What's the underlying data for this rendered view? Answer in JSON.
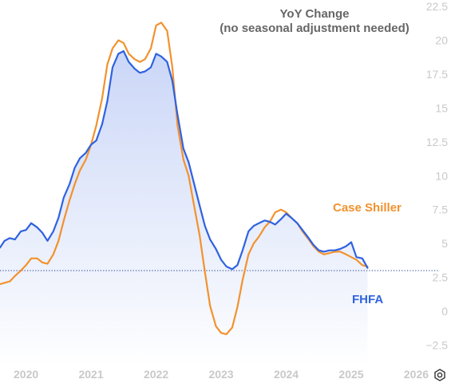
{
  "chart_data": {
    "type": "line",
    "title_lines": [
      "YoY Change",
      "(no seasonal adjustment needed)"
    ],
    "xlabel": "",
    "ylabel": "",
    "xlim": [
      2019.6,
      2026.35
    ],
    "ylim": [
      -4.0,
      22.5
    ],
    "yticks": [
      22.5,
      20,
      17.5,
      15,
      12.5,
      10,
      7.5,
      5,
      2.5,
      0,
      -2.5
    ],
    "ytick_labels": [
      "22.5",
      "20",
      "17.5",
      "15",
      "12.5",
      "10",
      "7.5",
      "5",
      "2.5",
      "0",
      "−2.5"
    ],
    "xticks": [
      2020,
      2021,
      2022,
      2023,
      2024,
      2025,
      2026
    ],
    "xtick_labels": [
      "2020",
      "2021",
      "2022",
      "2023",
      "2024",
      "2025",
      "2026"
    ],
    "reference_line": 3.0,
    "grid": false,
    "series": [
      {
        "name": "FHFA",
        "color": "#2f62e0",
        "area": true,
        "x": [
          2019.6,
          2019.67,
          2019.75,
          2019.83,
          2019.92,
          2020.0,
          2020.08,
          2020.17,
          2020.25,
          2020.33,
          2020.42,
          2020.5,
          2020.58,
          2020.67,
          2020.75,
          2020.83,
          2020.92,
          2021.0,
          2021.08,
          2021.17,
          2021.25,
          2021.33,
          2021.42,
          2021.5,
          2021.58,
          2021.67,
          2021.75,
          2021.83,
          2021.92,
          2022.0,
          2022.08,
          2022.17,
          2022.25,
          2022.33,
          2022.42,
          2022.5,
          2022.58,
          2022.67,
          2022.75,
          2022.83,
          2022.92,
          2023.0,
          2023.08,
          2023.17,
          2023.25,
          2023.33,
          2023.42,
          2023.5,
          2023.58,
          2023.67,
          2023.75,
          2023.83,
          2023.92,
          2024.0,
          2024.08,
          2024.17,
          2024.25,
          2024.33,
          2024.42,
          2024.5,
          2024.58,
          2024.67,
          2024.75,
          2024.83,
          2024.92,
          2025.0,
          2025.08,
          2025.17,
          2025.25
        ],
        "y": [
          4.7,
          5.2,
          5.4,
          5.3,
          5.9,
          6.0,
          6.5,
          6.2,
          5.8,
          5.2,
          5.9,
          6.9,
          8.4,
          9.4,
          10.6,
          11.3,
          11.7,
          12.3,
          12.6,
          13.8,
          15.5,
          18.0,
          19.0,
          19.2,
          18.4,
          17.9,
          17.6,
          17.7,
          18.0,
          19.0,
          18.8,
          18.4,
          17.0,
          14.5,
          12.0,
          11.0,
          9.5,
          7.8,
          6.3,
          5.3,
          4.6,
          3.8,
          3.3,
          3.1,
          3.4,
          4.5,
          5.9,
          6.3,
          6.5,
          6.7,
          6.6,
          6.4,
          6.8,
          7.2,
          6.9,
          6.5,
          6.0,
          5.5,
          4.9,
          4.5,
          4.4,
          4.5,
          4.5,
          4.6,
          4.8,
          5.1,
          4.0,
          3.9,
          3.2
        ]
      },
      {
        "name": "Case Shiller",
        "color": "#f2922e",
        "area": false,
        "x": [
          2019.6,
          2019.67,
          2019.75,
          2019.83,
          2019.92,
          2020.0,
          2020.08,
          2020.17,
          2020.25,
          2020.33,
          2020.42,
          2020.5,
          2020.58,
          2020.67,
          2020.75,
          2020.83,
          2020.92,
          2021.0,
          2021.08,
          2021.17,
          2021.25,
          2021.33,
          2021.42,
          2021.5,
          2021.58,
          2021.67,
          2021.75,
          2021.83,
          2021.92,
          2022.0,
          2022.08,
          2022.17,
          2022.25,
          2022.33,
          2022.42,
          2022.5,
          2022.58,
          2022.67,
          2022.75,
          2022.83,
          2022.92,
          2023.0,
          2023.08,
          2023.17,
          2023.25,
          2023.33,
          2023.42,
          2023.5,
          2023.58,
          2023.67,
          2023.75,
          2023.83,
          2023.92,
          2024.0,
          2024.08,
          2024.17,
          2024.25,
          2024.33,
          2024.42,
          2024.5,
          2024.58,
          2024.67,
          2024.75,
          2024.83,
          2024.92,
          2025.0,
          2025.08,
          2025.17,
          2025.25
        ],
        "y": [
          2.0,
          2.1,
          2.2,
          2.6,
          3.0,
          3.4,
          3.9,
          3.9,
          3.6,
          3.5,
          4.2,
          5.2,
          6.7,
          8.2,
          9.4,
          10.4,
          11.2,
          12.3,
          13.7,
          15.7,
          18.2,
          19.4,
          20.0,
          19.8,
          19.0,
          18.6,
          18.4,
          18.6,
          19.4,
          21.1,
          21.3,
          20.7,
          18.0,
          13.7,
          11.2,
          10.0,
          7.9,
          5.6,
          2.9,
          0.4,
          -1.1,
          -1.6,
          -1.7,
          -1.2,
          0.3,
          2.3,
          4.2,
          5.0,
          5.5,
          6.2,
          6.6,
          7.3,
          7.5,
          7.3,
          6.9,
          6.5,
          5.9,
          5.4,
          4.8,
          4.4,
          4.2,
          4.3,
          4.4,
          4.4,
          4.2,
          4.0,
          3.8,
          3.4,
          3.3
        ]
      }
    ]
  }
}
